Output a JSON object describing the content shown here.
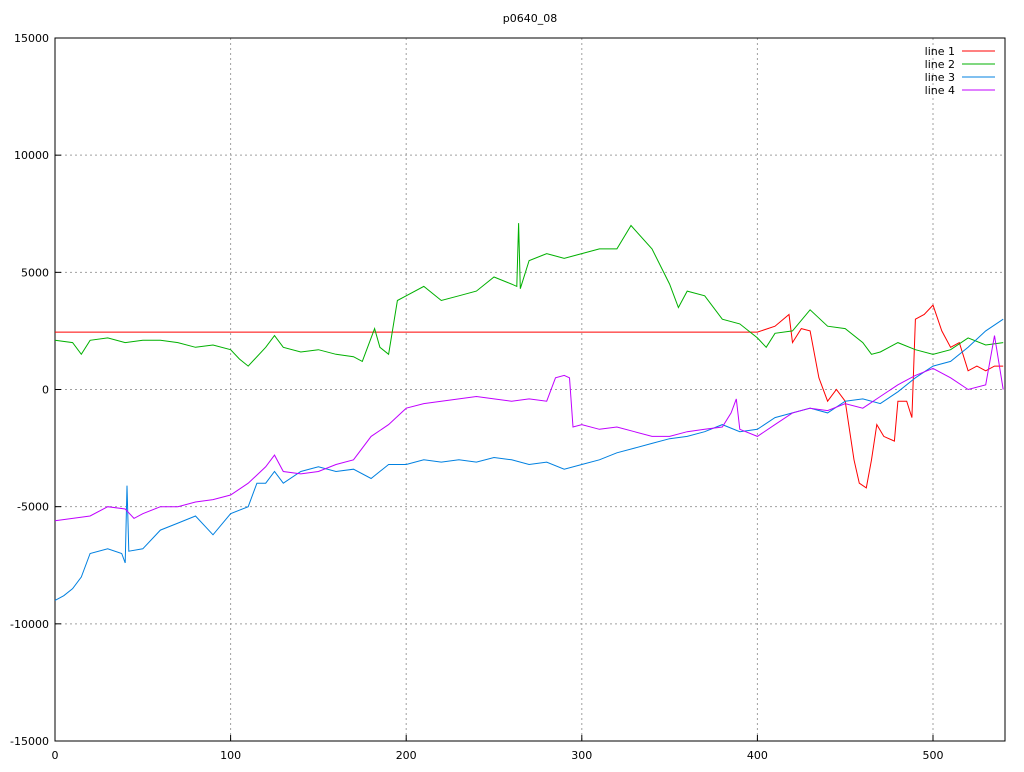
{
  "chart_data": {
    "type": "line",
    "title": "p0640_08",
    "xlim": [
      0,
      541
    ],
    "xticks": [
      0,
      100,
      200,
      300,
      400,
      500
    ],
    "ylim": [
      -15000,
      15000
    ],
    "yticks": [
      -15000,
      -10000,
      -5000,
      0,
      5000,
      10000,
      15000
    ],
    "grid": true,
    "legend": "top-right",
    "series": [
      {
        "name": "line 1",
        "color": "#ff0000",
        "x": [
          0,
          100,
          200,
          300,
          400,
          410,
          418,
          420,
          425,
          430,
          435,
          440,
          445,
          450,
          455,
          458,
          462,
          465,
          468,
          472,
          478,
          480,
          485,
          488,
          490,
          495,
          500,
          505,
          510,
          515,
          520,
          525,
          530,
          535,
          540
        ],
        "values": [
          2450,
          2450,
          2450,
          2450,
          2450,
          2700,
          3200,
          2000,
          2600,
          2500,
          500,
          -500,
          0,
          -500,
          -3000,
          -4000,
          -4200,
          -3000,
          -1500,
          -2000,
          -2200,
          -500,
          -500,
          -1200,
          3000,
          3200,
          3600,
          2500,
          1800,
          2000,
          800,
          1000,
          800,
          1000,
          1000
        ]
      },
      {
        "name": "line 2",
        "color": "#00b000",
        "x": [
          0,
          10,
          15,
          20,
          30,
          40,
          50,
          60,
          70,
          80,
          90,
          100,
          105,
          110,
          120,
          125,
          130,
          140,
          150,
          160,
          170,
          175,
          180,
          182,
          185,
          190,
          195,
          200,
          210,
          220,
          230,
          240,
          250,
          260,
          263,
          264,
          265,
          270,
          280,
          290,
          300,
          310,
          320,
          328,
          340,
          350,
          355,
          360,
          370,
          380,
          390,
          400,
          405,
          410,
          420,
          430,
          440,
          450,
          460,
          465,
          470,
          480,
          490,
          500,
          510,
          520,
          530,
          540
        ],
        "values": [
          2100,
          2000,
          1500,
          2100,
          2200,
          2000,
          2100,
          2100,
          2000,
          1800,
          1900,
          1700,
          1300,
          1000,
          1800,
          2300,
          1800,
          1600,
          1700,
          1500,
          1400,
          1200,
          2200,
          2600,
          1800,
          1500,
          3800,
          4000,
          4400,
          3800,
          4000,
          4200,
          4800,
          4500,
          4400,
          7100,
          4300,
          5500,
          5800,
          5600,
          5800,
          6000,
          6000,
          7000,
          6000,
          4500,
          3500,
          4200,
          4000,
          3000,
          2800,
          2200,
          1800,
          2400,
          2500,
          3400,
          2700,
          2600,
          2000,
          1500,
          1600,
          2000,
          1700,
          1500,
          1700,
          2200,
          1900,
          2000
        ]
      },
      {
        "name": "line 3",
        "color": "#0080e0",
        "x": [
          0,
          5,
          10,
          15,
          20,
          30,
          38,
          40,
          41,
          42,
          50,
          60,
          70,
          80,
          90,
          100,
          110,
          115,
          120,
          125,
          130,
          140,
          150,
          160,
          170,
          180,
          190,
          200,
          210,
          220,
          230,
          240,
          250,
          260,
          270,
          280,
          290,
          300,
          310,
          320,
          330,
          340,
          350,
          360,
          370,
          380,
          390,
          400,
          410,
          420,
          430,
          440,
          450,
          460,
          470,
          480,
          490,
          500,
          510,
          520,
          530,
          540
        ],
        "values": [
          -9000,
          -8800,
          -8500,
          -8000,
          -7000,
          -6800,
          -7000,
          -7400,
          -4100,
          -6900,
          -6800,
          -6000,
          -5700,
          -5400,
          -6200,
          -5300,
          -5000,
          -4000,
          -4000,
          -3500,
          -4000,
          -3500,
          -3300,
          -3500,
          -3400,
          -3800,
          -3200,
          -3200,
          -3000,
          -3100,
          -3000,
          -3100,
          -2900,
          -3000,
          -3200,
          -3100,
          -3400,
          -3200,
          -3000,
          -2700,
          -2500,
          -2300,
          -2100,
          -2000,
          -1800,
          -1500,
          -1800,
          -1700,
          -1200,
          -1000,
          -800,
          -1000,
          -500,
          -400,
          -600,
          -100,
          500,
          1000,
          1200,
          1800,
          2500,
          3000
        ]
      },
      {
        "name": "line 4",
        "color": "#c000ff",
        "x": [
          0,
          10,
          20,
          30,
          40,
          45,
          50,
          60,
          70,
          80,
          90,
          100,
          110,
          120,
          125,
          130,
          140,
          150,
          160,
          170,
          180,
          190,
          200,
          210,
          220,
          230,
          240,
          250,
          260,
          270,
          280,
          285,
          290,
          293,
          295,
          300,
          310,
          320,
          330,
          340,
          350,
          360,
          370,
          380,
          385,
          388,
          390,
          400,
          410,
          420,
          430,
          440,
          450,
          460,
          470,
          480,
          490,
          500,
          510,
          520,
          530,
          535,
          540
        ],
        "values": [
          -5600,
          -5500,
          -5400,
          -5000,
          -5100,
          -5500,
          -5300,
          -5000,
          -5000,
          -4800,
          -4700,
          -4500,
          -4000,
          -3300,
          -2800,
          -3500,
          -3600,
          -3500,
          -3200,
          -3000,
          -2000,
          -1500,
          -800,
          -600,
          -500,
          -400,
          -300,
          -400,
          -500,
          -400,
          -500,
          500,
          600,
          500,
          -1600,
          -1500,
          -1700,
          -1600,
          -1800,
          -2000,
          -2000,
          -1800,
          -1700,
          -1600,
          -1000,
          -400,
          -1700,
          -2000,
          -1500,
          -1000,
          -800,
          -900,
          -600,
          -800,
          -300,
          200,
          600,
          900,
          500,
          0,
          200,
          2300,
          0
        ]
      }
    ]
  }
}
